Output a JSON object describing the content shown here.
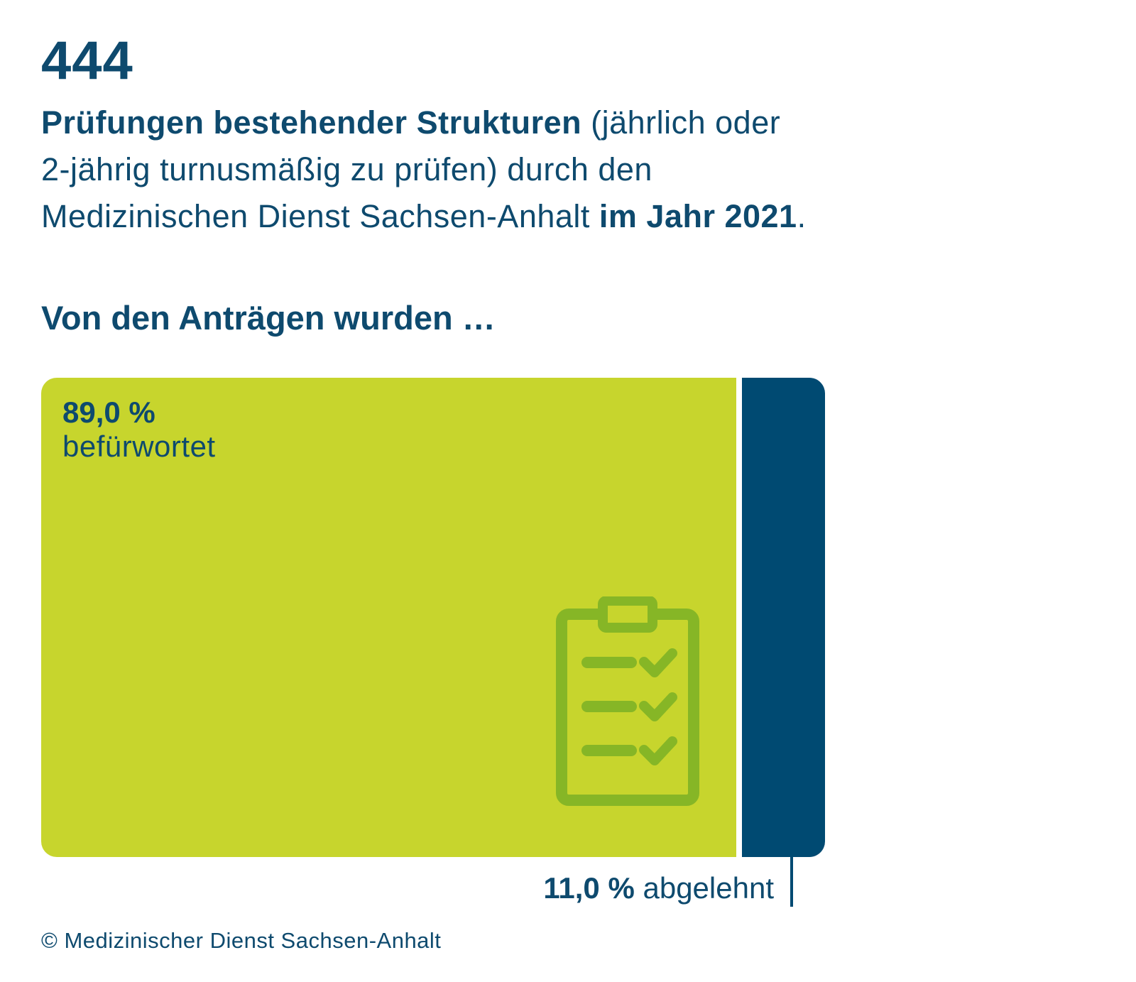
{
  "headline": {
    "number": "444",
    "intro_bold": "Prüfungen bestehender Strukturen",
    "intro_text_1": " (jährlich oder",
    "intro_text_2": "2-jährig turnusmäßig zu prüfen) durch den",
    "intro_text_3": "Medizinischen Dienst Sachsen-Anhalt ",
    "intro_bold_2": "im Jahr 2021",
    "intro_end": "."
  },
  "subheading": "Von den Anträgen wurden …",
  "chart_data": {
    "type": "bar",
    "orientation": "horizontal-stacked",
    "series": [
      {
        "name": "befürwortet",
        "value": 89.0,
        "label_value": "89,0 %",
        "color": "#c7d52d"
      },
      {
        "name": "abgelehnt",
        "value": 11.0,
        "label_value": "11,0 %",
        "color": "#004a72"
      }
    ],
    "total": 100
  },
  "icon": {
    "name": "clipboard-checklist-icon",
    "color": "#86b626"
  },
  "footer": {
    "copyright": "© Medizinischer Dienst Sachsen-Anhalt"
  }
}
